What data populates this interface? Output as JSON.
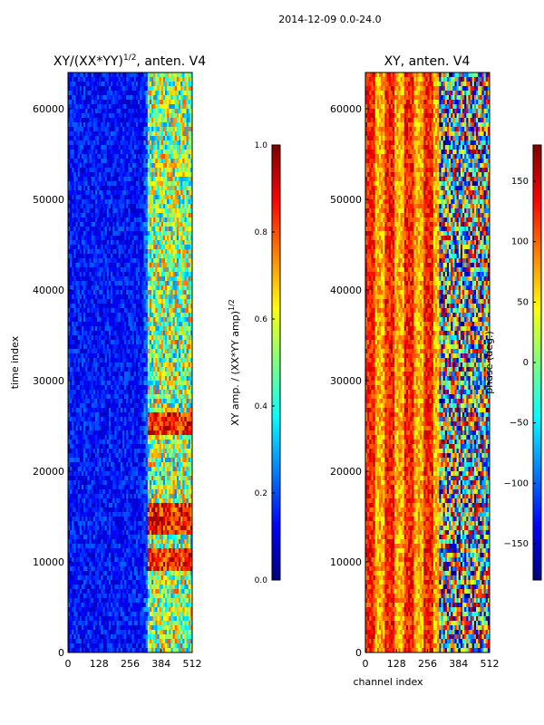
{
  "suptitle": "2014-12-09 0.0-24.0",
  "chart_data": [
    {
      "type": "heatmap",
      "title_main": "XY/(XX*YY)",
      "title_sup": "1/2",
      "title_tail": ", anten. V4",
      "ylabel": "time index",
      "xlabel": "",
      "xlim": [
        0,
        512
      ],
      "ylim": [
        0,
        64000
      ],
      "xticks": [
        "0",
        "128",
        "256",
        "384",
        "512"
      ],
      "xtick_values": [
        0,
        128,
        256,
        384,
        512
      ],
      "yticks": [
        "0",
        "10000",
        "20000",
        "30000",
        "40000",
        "50000",
        "60000"
      ],
      "ytick_values": [
        0,
        10000,
        20000,
        30000,
        40000,
        50000,
        60000
      ],
      "colorbar": {
        "label_main": "XY amp. / (XX*YY amp)",
        "label_sup": "1/2",
        "range": [
          0.0,
          1.0
        ],
        "ticks": [
          "0.0",
          "0.2",
          "0.4",
          "0.6",
          "0.8",
          "1.0"
        ],
        "tick_values": [
          0.0,
          0.2,
          0.4,
          0.6,
          0.8,
          1.0
        ]
      }
    },
    {
      "type": "heatmap",
      "title": "XY, anten. V4",
      "ylabel": "",
      "xlabel": "channel index",
      "xlim": [
        0,
        512
      ],
      "ylim": [
        0,
        64000
      ],
      "xticks": [
        "0",
        "128",
        "256",
        "384",
        "512"
      ],
      "xtick_values": [
        0,
        128,
        256,
        384,
        512
      ],
      "yticks": [
        "0",
        "10000",
        "20000",
        "30000",
        "40000",
        "50000",
        "60000"
      ],
      "ytick_values": [
        0,
        10000,
        20000,
        30000,
        40000,
        50000,
        60000
      ],
      "colorbar": {
        "label": "phase (deg.)",
        "range": [
          -180,
          180
        ],
        "ticks": [
          "−150",
          "−100",
          "−50",
          "0",
          "50",
          "100",
          "150"
        ],
        "tick_values": [
          -150,
          -100,
          -50,
          0,
          50,
          100,
          150
        ]
      }
    }
  ],
  "colors": {
    "jet": [
      "#00007f",
      "#0000ff",
      "#007fff",
      "#00ffff",
      "#7fff7f",
      "#ffff00",
      "#ff7f00",
      "#ff0000",
      "#7f0000"
    ]
  }
}
